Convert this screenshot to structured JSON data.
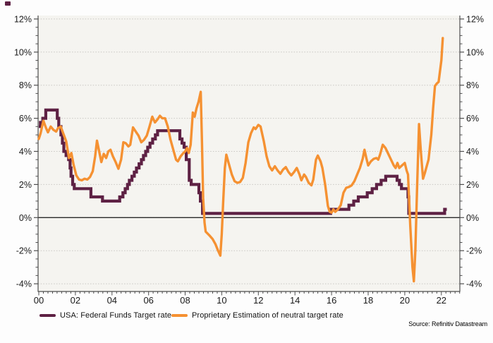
{
  "window": {
    "background": "#fdfdfd",
    "corner_mark_color": "#5E2144"
  },
  "chart_data": {
    "type": "line",
    "title": "",
    "source": "Source: Refinitiv Datastream",
    "legend_position": "bottom",
    "grid": "horizontal-dotted-at-major-ticks",
    "plot_background": "#f5f4f0",
    "axis_color": "#4d4d4d",
    "grid_color": "#c8c6c2",
    "zero_line_color": "#2a2a2a",
    "text_color": "#1a1a1a",
    "x_axis": {
      "range": [
        2000,
        2023.05
      ],
      "tick_values": [
        2000,
        2002,
        2004,
        2006,
        2008,
        2010,
        2012,
        2014,
        2016,
        2018,
        2020,
        2022
      ],
      "tick_labels": [
        "00",
        "02",
        "04",
        "06",
        "08",
        "10",
        "12",
        "14",
        "16",
        "18",
        "20",
        "22"
      ],
      "minor_tick_step": 0.25
    },
    "y_axis": {
      "unit": "%",
      "range": [
        -4.5,
        12.25
      ],
      "tick_values": [
        12,
        10,
        8,
        6,
        4,
        2,
        0,
        -2,
        -4
      ],
      "tick_labels": [
        "12%",
        "10%",
        "8%",
        "6%",
        "4%",
        "2%",
        "0%",
        "-2%",
        "-4%"
      ],
      "minor_tick_step": 0.5,
      "labels_both_sides": true
    },
    "series": [
      {
        "name": "USA: Federal Funds Target rate",
        "color": "#5E2144",
        "style": "step",
        "line_width": 4.2,
        "points": [
          [
            2000.0,
            5.5
          ],
          [
            2000.09,
            5.75
          ],
          [
            2000.22,
            6.0
          ],
          [
            2000.38,
            6.5
          ],
          [
            2001.01,
            6.0
          ],
          [
            2001.09,
            5.5
          ],
          [
            2001.21,
            5.0
          ],
          [
            2001.29,
            4.5
          ],
          [
            2001.37,
            4.0
          ],
          [
            2001.49,
            3.75
          ],
          [
            2001.63,
            3.5
          ],
          [
            2001.71,
            3.0
          ],
          [
            2001.76,
            2.5
          ],
          [
            2001.85,
            2.0
          ],
          [
            2001.94,
            1.75
          ],
          [
            2002.85,
            1.25
          ],
          [
            2003.48,
            1.0
          ],
          [
            2004.42,
            1.25
          ],
          [
            2004.6,
            1.5
          ],
          [
            2004.72,
            1.75
          ],
          [
            2004.85,
            2.0
          ],
          [
            2004.95,
            2.25
          ],
          [
            2005.09,
            2.5
          ],
          [
            2005.22,
            2.75
          ],
          [
            2005.34,
            3.0
          ],
          [
            2005.48,
            3.25
          ],
          [
            2005.61,
            3.5
          ],
          [
            2005.72,
            3.75
          ],
          [
            2005.84,
            4.0
          ],
          [
            2005.95,
            4.25
          ],
          [
            2006.08,
            4.5
          ],
          [
            2006.22,
            4.75
          ],
          [
            2006.37,
            5.0
          ],
          [
            2006.49,
            5.25
          ],
          [
            2007.71,
            4.75
          ],
          [
            2007.83,
            4.5
          ],
          [
            2007.94,
            4.25
          ],
          [
            2008.06,
            3.5
          ],
          [
            2008.22,
            2.25
          ],
          [
            2008.33,
            2.0
          ],
          [
            2008.75,
            1.5
          ],
          [
            2008.83,
            1.0
          ],
          [
            2008.95,
            0.25
          ],
          [
            2015.95,
            0.5
          ],
          [
            2016.95,
            0.75
          ],
          [
            2017.21,
            1.0
          ],
          [
            2017.46,
            1.25
          ],
          [
            2017.95,
            1.5
          ],
          [
            2018.22,
            1.75
          ],
          [
            2018.46,
            2.0
          ],
          [
            2018.71,
            2.25
          ],
          [
            2018.96,
            2.5
          ],
          [
            2019.58,
            2.25
          ],
          [
            2019.71,
            2.0
          ],
          [
            2019.82,
            1.75
          ],
          [
            2020.18,
            1.25
          ],
          [
            2020.22,
            0.25
          ],
          [
            2022.18,
            0.5
          ],
          [
            2022.3,
            0.5
          ]
        ]
      },
      {
        "name": "Proprietary Estimation of neutral target rate",
        "color": "#F59132",
        "style": "linear",
        "line_width": 3.4,
        "points": [
          [
            2000.0,
            4.75
          ],
          [
            2000.1,
            5.1
          ],
          [
            2000.25,
            5.85
          ],
          [
            2000.4,
            5.4
          ],
          [
            2000.5,
            5.15
          ],
          [
            2000.65,
            5.5
          ],
          [
            2000.8,
            5.3
          ],
          [
            2000.95,
            5.2
          ],
          [
            2001.05,
            5.4
          ],
          [
            2001.2,
            5.5
          ],
          [
            2001.35,
            5.05
          ],
          [
            2001.5,
            4.6
          ],
          [
            2001.65,
            3.6
          ],
          [
            2001.78,
            3.9
          ],
          [
            2001.9,
            3.2
          ],
          [
            2002.05,
            2.55
          ],
          [
            2002.2,
            2.3
          ],
          [
            2002.35,
            2.25
          ],
          [
            2002.5,
            2.35
          ],
          [
            2002.65,
            2.3
          ],
          [
            2002.8,
            2.45
          ],
          [
            2002.95,
            2.8
          ],
          [
            2003.08,
            3.7
          ],
          [
            2003.18,
            4.65
          ],
          [
            2003.3,
            4.0
          ],
          [
            2003.42,
            3.35
          ],
          [
            2003.55,
            3.85
          ],
          [
            2003.68,
            3.6
          ],
          [
            2003.8,
            4.0
          ],
          [
            2003.92,
            4.1
          ],
          [
            2004.05,
            3.7
          ],
          [
            2004.2,
            3.35
          ],
          [
            2004.35,
            2.95
          ],
          [
            2004.5,
            3.5
          ],
          [
            2004.62,
            4.55
          ],
          [
            2004.75,
            4.5
          ],
          [
            2004.9,
            4.3
          ],
          [
            2005.0,
            4.4
          ],
          [
            2005.15,
            5.45
          ],
          [
            2005.3,
            5.2
          ],
          [
            2005.45,
            4.95
          ],
          [
            2005.6,
            4.55
          ],
          [
            2005.75,
            4.7
          ],
          [
            2005.9,
            4.95
          ],
          [
            2006.05,
            5.5
          ],
          [
            2006.2,
            6.1
          ],
          [
            2006.35,
            5.75
          ],
          [
            2006.5,
            5.95
          ],
          [
            2006.62,
            6.15
          ],
          [
            2006.75,
            6.0
          ],
          [
            2006.9,
            6.0
          ],
          [
            2007.05,
            5.5
          ],
          [
            2007.2,
            4.7
          ],
          [
            2007.35,
            4.1
          ],
          [
            2007.5,
            3.5
          ],
          [
            2007.6,
            3.4
          ],
          [
            2007.75,
            3.7
          ],
          [
            2007.9,
            3.9
          ],
          [
            2008.0,
            4.0
          ],
          [
            2008.1,
            4.2
          ],
          [
            2008.2,
            3.9
          ],
          [
            2008.3,
            4.4
          ],
          [
            2008.42,
            6.35
          ],
          [
            2008.52,
            6.1
          ],
          [
            2008.62,
            6.6
          ],
          [
            2008.73,
            7.0
          ],
          [
            2008.85,
            7.6
          ],
          [
            2008.92,
            4.5
          ],
          [
            2008.98,
            1.2
          ],
          [
            2009.06,
            -0.3
          ],
          [
            2009.12,
            -0.85
          ],
          [
            2009.3,
            -1.05
          ],
          [
            2009.5,
            -1.3
          ],
          [
            2009.65,
            -1.6
          ],
          [
            2009.8,
            -2.0
          ],
          [
            2009.92,
            -2.3
          ],
          [
            2010.0,
            -1.0
          ],
          [
            2010.08,
            1.0
          ],
          [
            2010.17,
            3.0
          ],
          [
            2010.25,
            3.8
          ],
          [
            2010.4,
            3.2
          ],
          [
            2010.55,
            2.6
          ],
          [
            2010.7,
            2.2
          ],
          [
            2010.85,
            2.1
          ],
          [
            2011.0,
            2.15
          ],
          [
            2011.15,
            2.4
          ],
          [
            2011.3,
            3.3
          ],
          [
            2011.45,
            4.55
          ],
          [
            2011.6,
            5.1
          ],
          [
            2011.75,
            5.45
          ],
          [
            2011.85,
            5.35
          ],
          [
            2012.0,
            5.6
          ],
          [
            2012.12,
            5.5
          ],
          [
            2012.3,
            4.6
          ],
          [
            2012.45,
            3.7
          ],
          [
            2012.6,
            3.1
          ],
          [
            2012.75,
            2.85
          ],
          [
            2012.9,
            3.1
          ],
          [
            2013.05,
            2.85
          ],
          [
            2013.2,
            2.65
          ],
          [
            2013.35,
            2.9
          ],
          [
            2013.5,
            3.05
          ],
          [
            2013.65,
            2.75
          ],
          [
            2013.8,
            2.55
          ],
          [
            2013.95,
            2.75
          ],
          [
            2014.1,
            3.0
          ],
          [
            2014.25,
            2.6
          ],
          [
            2014.35,
            2.25
          ],
          [
            2014.5,
            2.6
          ],
          [
            2014.6,
            2.45
          ],
          [
            2014.75,
            2.1
          ],
          [
            2014.9,
            1.95
          ],
          [
            2015.0,
            2.3
          ],
          [
            2015.15,
            3.5
          ],
          [
            2015.25,
            3.75
          ],
          [
            2015.4,
            3.4
          ],
          [
            2015.5,
            3.0
          ],
          [
            2015.65,
            2.0
          ],
          [
            2015.8,
            0.7
          ],
          [
            2015.9,
            0.35
          ],
          [
            2016.0,
            0.3
          ],
          [
            2016.1,
            0.5
          ],
          [
            2016.2,
            0.35
          ],
          [
            2016.35,
            0.5
          ],
          [
            2016.5,
            0.75
          ],
          [
            2016.65,
            1.5
          ],
          [
            2016.8,
            1.8
          ],
          [
            2016.95,
            1.85
          ],
          [
            2017.1,
            1.95
          ],
          [
            2017.25,
            2.2
          ],
          [
            2017.4,
            2.6
          ],
          [
            2017.55,
            3.0
          ],
          [
            2017.7,
            3.55
          ],
          [
            2017.8,
            4.1
          ],
          [
            2017.9,
            3.6
          ],
          [
            2018.0,
            3.15
          ],
          [
            2018.15,
            3.4
          ],
          [
            2018.3,
            3.55
          ],
          [
            2018.45,
            3.6
          ],
          [
            2018.55,
            3.5
          ],
          [
            2018.65,
            3.8
          ],
          [
            2018.8,
            4.4
          ],
          [
            2018.95,
            4.2
          ],
          [
            2019.1,
            3.85
          ],
          [
            2019.25,
            3.5
          ],
          [
            2019.4,
            3.15
          ],
          [
            2019.5,
            3.0
          ],
          [
            2019.6,
            3.3
          ],
          [
            2019.7,
            3.0
          ],
          [
            2019.85,
            3.15
          ],
          [
            2020.0,
            3.3
          ],
          [
            2020.1,
            2.85
          ],
          [
            2020.18,
            2.6
          ],
          [
            2020.3,
            -0.5
          ],
          [
            2020.42,
            -3.0
          ],
          [
            2020.5,
            -3.85
          ],
          [
            2020.58,
            -2.0
          ],
          [
            2020.68,
            2.0
          ],
          [
            2020.78,
            5.65
          ],
          [
            2020.88,
            4.0
          ],
          [
            2021.0,
            2.35
          ],
          [
            2021.1,
            2.7
          ],
          [
            2021.2,
            3.1
          ],
          [
            2021.3,
            3.5
          ],
          [
            2021.45,
            5.0
          ],
          [
            2021.55,
            6.6
          ],
          [
            2021.65,
            7.95
          ],
          [
            2021.75,
            8.1
          ],
          [
            2021.85,
            8.2
          ],
          [
            2022.0,
            9.5
          ],
          [
            2022.08,
            10.85
          ]
        ]
      }
    ]
  }
}
